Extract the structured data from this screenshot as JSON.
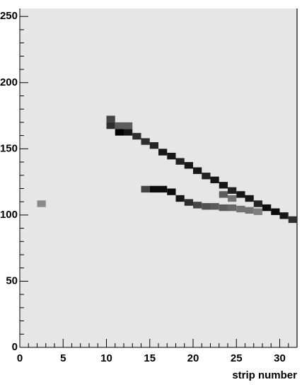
{
  "chart_data": {
    "type": "heatmap",
    "x_label": "strip number",
    "xlim": [
      0,
      32
    ],
    "ylim": [
      0,
      256
    ],
    "xticks": [
      0,
      5,
      10,
      15,
      20,
      25,
      30
    ],
    "yticks": [
      0,
      50,
      100,
      150,
      200,
      250
    ],
    "xminorticks": [
      1,
      2,
      3,
      4,
      6,
      7,
      8,
      9,
      11,
      12,
      13,
      14,
      16,
      17,
      18,
      19,
      21,
      22,
      23,
      24,
      26,
      27,
      28,
      29,
      31
    ],
    "yminorticks": [
      10,
      20,
      30,
      40,
      60,
      70,
      80,
      90,
      110,
      120,
      130,
      140,
      160,
      170,
      180,
      190,
      210,
      220,
      230,
      240
    ],
    "xbin_width": 1,
    "ybin_width": 5,
    "colormap": [
      "#e6e6e6",
      "#000000"
    ],
    "x": [
      2,
      10,
      10,
      11,
      11,
      12,
      12,
      13,
      14,
      15,
      16,
      17,
      18,
      19,
      20,
      21,
      22,
      23,
      24,
      25,
      26,
      27,
      28,
      29,
      30,
      31,
      14,
      15,
      16,
      17,
      18,
      19,
      20,
      21,
      22,
      23,
      24,
      25,
      26,
      27,
      23,
      24
    ],
    "y": [
      106,
      170,
      165,
      165,
      160,
      160,
      165,
      157,
      153,
      150,
      145,
      142,
      138,
      135,
      131,
      127,
      124,
      120,
      116,
      113,
      110,
      106,
      103,
      100,
      97,
      94,
      117,
      117,
      117,
      115,
      110,
      107,
      105,
      104,
      104,
      103,
      103,
      102,
      101,
      100,
      113,
      110
    ],
    "values": [
      0.4,
      0.7,
      0.8,
      0.6,
      1.0,
      0.9,
      0.6,
      0.8,
      0.8,
      0.85,
      0.9,
      0.9,
      0.85,
      0.9,
      0.9,
      0.85,
      0.9,
      0.9,
      0.85,
      0.9,
      0.9,
      0.85,
      0.95,
      0.95,
      0.9,
      0.8,
      0.7,
      0.95,
      0.95,
      0.95,
      0.9,
      0.8,
      0.7,
      0.65,
      0.6,
      0.6,
      0.55,
      0.5,
      0.5,
      0.45,
      0.6,
      0.5
    ]
  }
}
